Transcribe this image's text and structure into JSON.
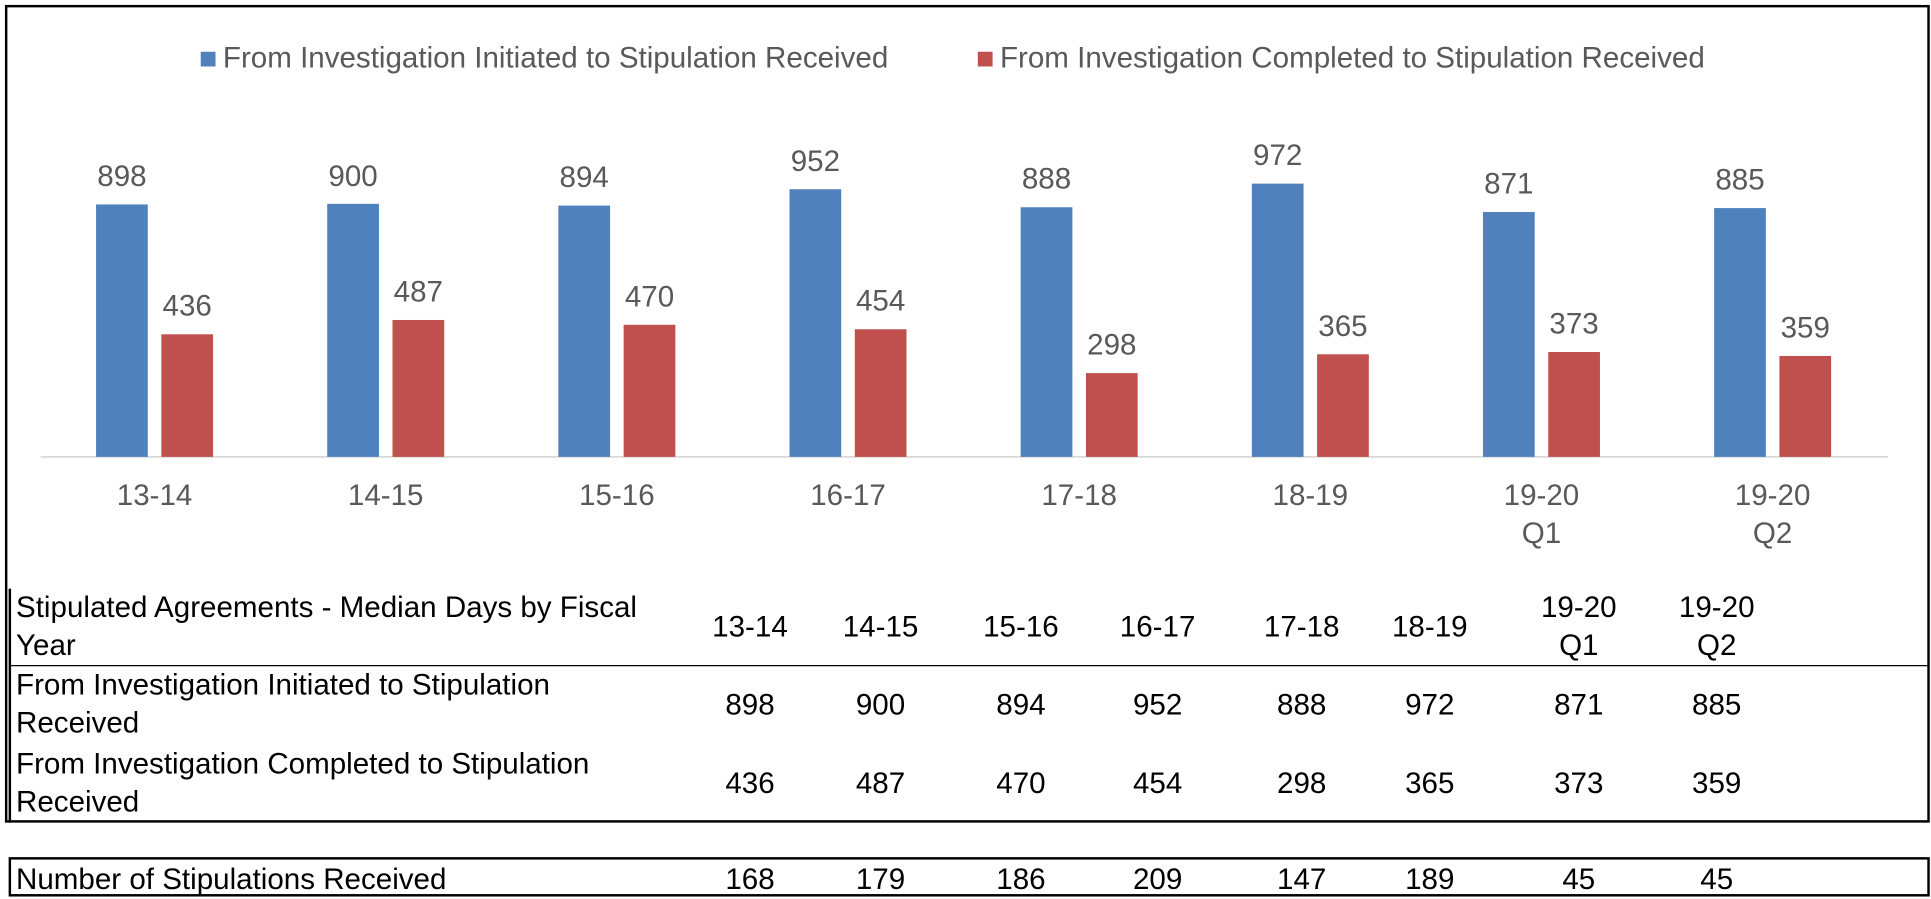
{
  "chart_data": {
    "type": "bar",
    "categories": [
      "13-14",
      "14-15",
      "15-16",
      "16-17",
      "17-18",
      "18-19",
      "19-20\nQ1",
      "19-20\nQ2"
    ],
    "series": [
      {
        "name": "From Investigation Initiated to Stipulation Received",
        "color": "#4f81bd",
        "values": [
          898,
          900,
          894,
          952,
          888,
          972,
          871,
          885
        ]
      },
      {
        "name": "From Investigation Completed to Stipulation Received",
        "color": "#c0504d",
        "values": [
          436,
          487,
          470,
          454,
          298,
          365,
          373,
          359
        ]
      }
    ],
    "legend": "top"
  },
  "table": {
    "title": "Stipulated Agreements - Median Days by Fiscal Year",
    "stipulations": {
      "label": "Number of Stipulations Received",
      "values": [
        168,
        179,
        186,
        209,
        147,
        189,
        45,
        45
      ]
    }
  }
}
